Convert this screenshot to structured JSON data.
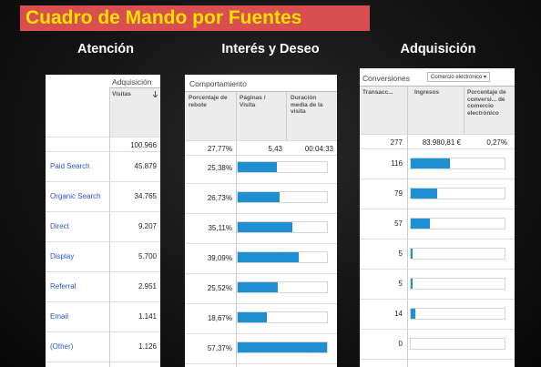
{
  "title": "Cuadro de Mando por Fuentes",
  "sections": {
    "atencion": "Atención",
    "interes": "Interés y Deseo",
    "adquisicion": "Adquisición"
  },
  "panel_atencion": {
    "caption": "Adquisición",
    "col_visitas": "Visitas",
    "sort_icon": "arrow-down-icon",
    "total_visitas": "100.966",
    "rows": [
      {
        "source": "Paid Search",
        "visitas": "45.879"
      },
      {
        "source": "Organic Search",
        "visitas": "34.765"
      },
      {
        "source": "Direct",
        "visitas": "9.207"
      },
      {
        "source": "Display",
        "visitas": "5.700"
      },
      {
        "source": "Referral",
        "visitas": "2.951"
      },
      {
        "source": "Email",
        "visitas": "1.141"
      },
      {
        "source": "(Other)",
        "visitas": "1.126"
      }
    ]
  },
  "panel_interes": {
    "caption": "Comportamiento",
    "col_rebote": "Porcentaje de rebote",
    "col_paginas": "Páginas / Visita",
    "col_duracion": "Duración media de la visita",
    "total_rebote": "27,77%",
    "total_paginas": "5,43",
    "total_duracion": "00:04:33",
    "rows": [
      {
        "rebote": "25,38%",
        "bar": 0.44
      },
      {
        "rebote": "26,73%",
        "bar": 0.47
      },
      {
        "rebote": "35,11%",
        "bar": 0.61
      },
      {
        "rebote": "39,09%",
        "bar": 0.68
      },
      {
        "rebote": "25,52%",
        "bar": 0.45
      },
      {
        "rebote": "18,67%",
        "bar": 0.33
      },
      {
        "rebote": "57,37%",
        "bar": 1.0
      }
    ]
  },
  "panel_adquisicion": {
    "caption": "Conversiones",
    "dropdown": "Comercio electrónico",
    "col_transacc": "Transacc...",
    "col_ingresos": "Ingresos",
    "col_porcentaje": "Porcentaje de conversi... de comercio electrónico",
    "total_transacc": "277",
    "total_ingresos": "83.980,81 €",
    "total_porcentaje": "0,27%",
    "rows": [
      {
        "transacc": "116",
        "bar": 1.0
      },
      {
        "transacc": "79",
        "bar": 0.68
      },
      {
        "transacc": "57",
        "bar": 0.49
      },
      {
        "transacc": "5",
        "bar": 0.04
      },
      {
        "transacc": "5",
        "bar": 0.04
      },
      {
        "transacc": "14",
        "bar": 0.12
      },
      {
        "transacc": "0",
        "bar": 0.0
      }
    ]
  },
  "colors": {
    "banner": "#d94e4e",
    "title_text": "#f4e200",
    "bar": "#1e8fd0",
    "link": "#2a56c6"
  }
}
